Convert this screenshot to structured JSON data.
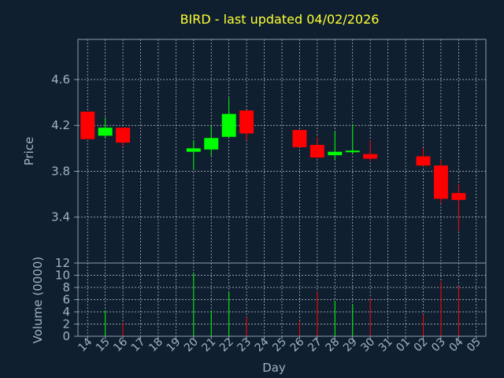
{
  "chart_data": [
    {
      "type": "candlestick",
      "title": "BIRD - last updated 04/02/2026",
      "ylabel": "Price",
      "ylim": [
        3.0,
        4.95
      ],
      "yticks": [
        "3.4",
        "3.8",
        "4.2",
        "4.6"
      ],
      "up_color": "#00ff00",
      "down_color": "#ff0000",
      "grid": true,
      "candles": [
        {
          "x": "14",
          "open": 4.32,
          "high": 4.32,
          "low": 4.08,
          "close": 4.08
        },
        {
          "x": "15",
          "open": 4.11,
          "high": 4.27,
          "low": 4.09,
          "close": 4.18
        },
        {
          "x": "16",
          "open": 4.18,
          "high": 4.18,
          "low": 4.02,
          "close": 4.05
        },
        {
          "x": "20",
          "open": 3.97,
          "high": 4.07,
          "low": 3.82,
          "close": 4.0
        },
        {
          "x": "21",
          "open": 3.99,
          "high": 4.2,
          "low": 3.93,
          "close": 4.09
        },
        {
          "x": "22",
          "open": 4.1,
          "high": 4.44,
          "low": 4.1,
          "close": 4.3
        },
        {
          "x": "23",
          "open": 4.33,
          "high": 4.33,
          "low": 4.07,
          "close": 4.13
        },
        {
          "x": "26",
          "open": 4.16,
          "high": 4.16,
          "low": 4.01,
          "close": 4.01
        },
        {
          "x": "27",
          "open": 4.03,
          "high": 4.1,
          "low": 3.91,
          "close": 3.92
        },
        {
          "x": "28",
          "open": 3.94,
          "high": 4.15,
          "low": 3.9,
          "close": 3.97
        },
        {
          "x": "29",
          "open": 3.97,
          "high": 4.21,
          "low": 3.95,
          "close": 3.98
        },
        {
          "x": "30",
          "open": 3.95,
          "high": 4.07,
          "low": 3.89,
          "close": 3.91
        },
        {
          "x": "02",
          "open": 3.93,
          "high": 4.0,
          "low": 3.84,
          "close": 3.85
        },
        {
          "x": "03",
          "open": 3.85,
          "high": 3.9,
          "low": 3.52,
          "close": 3.56
        },
        {
          "x": "04",
          "open": 3.61,
          "high": 3.69,
          "low": 3.28,
          "close": 3.55
        }
      ]
    },
    {
      "type": "bar",
      "xlabel": "Day",
      "ylabel": "Volume (0000)",
      "ylim": [
        0,
        12
      ],
      "yticks": [
        "0",
        "2",
        "4",
        "6",
        "8",
        "10",
        "12"
      ],
      "categories": [
        "14",
        "15",
        "16",
        "17",
        "18",
        "19",
        "20",
        "21",
        "22",
        "23",
        "24",
        "25",
        "26",
        "27",
        "28",
        "29",
        "30",
        "31",
        "01",
        "02",
        "03",
        "04",
        "05"
      ],
      "bars": [
        {
          "x": "15",
          "value": 4.2,
          "direction": "up"
        },
        {
          "x": "16",
          "value": 2.2,
          "direction": "down"
        },
        {
          "x": "20",
          "value": 10.4,
          "direction": "up"
        },
        {
          "x": "21",
          "value": 4.2,
          "direction": "up"
        },
        {
          "x": "22",
          "value": 7.3,
          "direction": "up"
        },
        {
          "x": "23",
          "value": 3.1,
          "direction": "down"
        },
        {
          "x": "26",
          "value": 2.5,
          "direction": "down"
        },
        {
          "x": "27",
          "value": 7.3,
          "direction": "down"
        },
        {
          "x": "28",
          "value": 5.8,
          "direction": "up"
        },
        {
          "x": "29",
          "value": 5.2,
          "direction": "up"
        },
        {
          "x": "30",
          "value": 6.3,
          "direction": "down"
        },
        {
          "x": "02",
          "value": 3.6,
          "direction": "down"
        },
        {
          "x": "03",
          "value": 9.0,
          "direction": "down"
        },
        {
          "x": "04",
          "value": 8.2,
          "direction": "down"
        }
      ]
    }
  ],
  "colors": {
    "background": "#0f1f30",
    "title": "#ffff33",
    "axis_text": "#9fb3c8",
    "grid": "#c0c8d0",
    "frame": "#8a9cb0"
  }
}
